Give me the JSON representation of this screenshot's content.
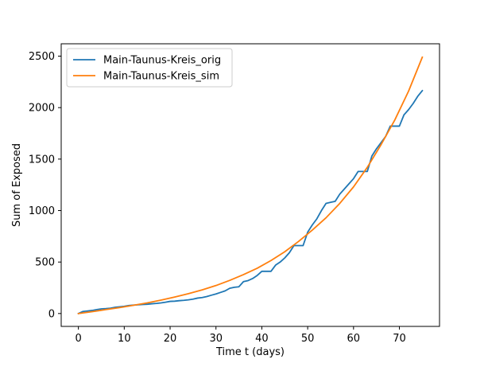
{
  "chart_data": {
    "type": "line",
    "title": "",
    "xlabel": "Time t (days)",
    "ylabel": "Sum of Exposed",
    "xlim": [
      -3.75,
      78.75
    ],
    "ylim": [
      -125,
      2620
    ],
    "xticks": [
      0,
      10,
      20,
      30,
      40,
      50,
      60,
      70
    ],
    "yticks": [
      0,
      500,
      1000,
      1500,
      2000,
      2500
    ],
    "grid": false,
    "legend_position": "upper-left",
    "series": [
      {
        "name": "Main-Taunus-Kreis_orig",
        "color": "#1f77b4",
        "x": [
          0,
          1,
          2,
          3,
          4,
          5,
          6,
          7,
          8,
          9,
          10,
          11,
          12,
          13,
          14,
          15,
          16,
          17,
          18,
          19,
          20,
          21,
          22,
          23,
          24,
          25,
          26,
          27,
          28,
          29,
          30,
          31,
          32,
          33,
          34,
          35,
          36,
          37,
          38,
          39,
          40,
          41,
          42,
          43,
          44,
          45,
          46,
          47,
          48,
          49,
          50,
          51,
          52,
          53,
          54,
          55,
          56,
          57,
          58,
          59,
          60,
          61,
          62,
          63,
          64,
          65,
          66,
          67,
          68,
          69,
          70,
          71,
          72,
          73,
          74,
          75
        ],
        "y": [
          0,
          20,
          25,
          30,
          38,
          45,
          48,
          52,
          60,
          65,
          70,
          78,
          82,
          85,
          88,
          90,
          95,
          98,
          103,
          110,
          118,
          120,
          125,
          128,
          133,
          140,
          150,
          155,
          165,
          178,
          190,
          205,
          220,
          245,
          255,
          260,
          310,
          320,
          340,
          370,
          410,
          410,
          410,
          470,
          500,
          540,
          590,
          660,
          660,
          660,
          790,
          860,
          920,
          1000,
          1070,
          1080,
          1090,
          1160,
          1210,
          1260,
          1310,
          1380,
          1380,
          1380,
          1530,
          1600,
          1660,
          1720,
          1820,
          1820,
          1820,
          1930,
          1980,
          2040,
          2110,
          2165
        ]
      },
      {
        "name": "Main-Taunus-Kreis_sim",
        "color": "#ff7f0e",
        "x": [
          0,
          3,
          6,
          9,
          12,
          15,
          18,
          21,
          24,
          27,
          30,
          33,
          36,
          39,
          42,
          45,
          48,
          51,
          54,
          57,
          60,
          63,
          66,
          69,
          72,
          75
        ],
        "y": [
          0,
          18,
          38,
          58,
          80,
          103,
          130,
          160,
          193,
          230,
          272,
          322,
          378,
          440,
          515,
          600,
          700,
          810,
          930,
          1070,
          1230,
          1420,
          1640,
          1880,
          2160,
          2490
        ]
      }
    ]
  }
}
